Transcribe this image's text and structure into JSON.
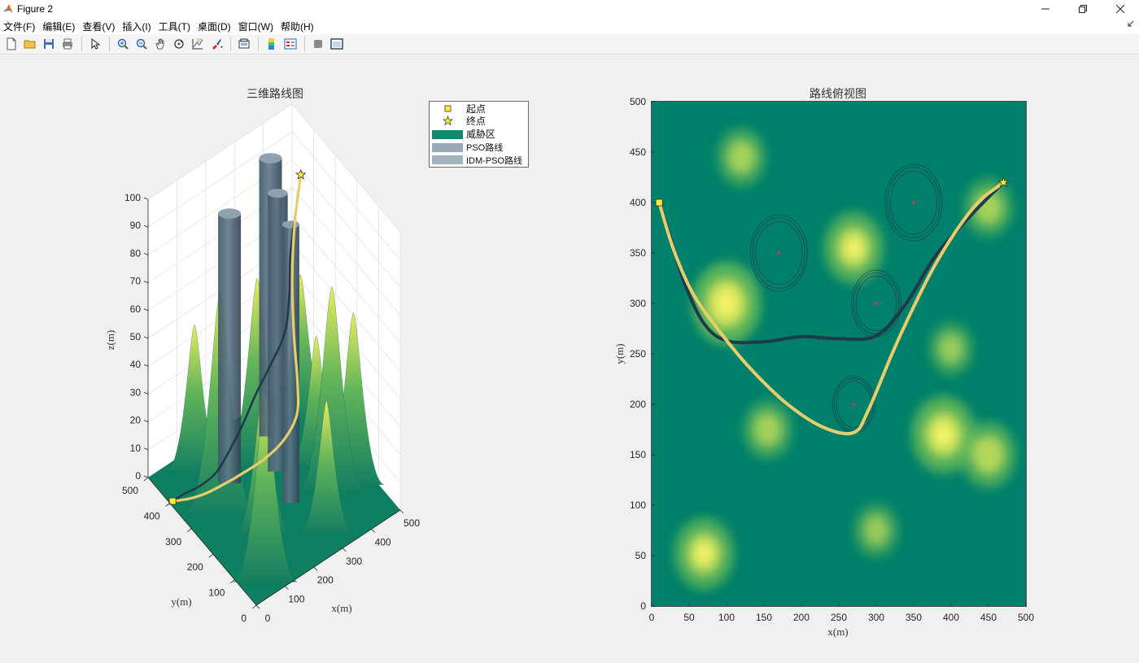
{
  "window": {
    "title": "Figure 2"
  },
  "menu": [
    "文件(F)",
    "编辑(E)",
    "查看(V)",
    "插入(I)",
    "工具(T)",
    "桌面(D)",
    "窗口(W)",
    "帮助(H)"
  ],
  "toolbar": [
    "new-file-icon",
    "open-folder-icon",
    "save-icon",
    "print-icon",
    "|",
    "select-arrow-icon",
    "|",
    "zoom-in-icon",
    "zoom-out-icon",
    "pan-hand-icon",
    "rotate-3d-icon",
    "data-cursor-icon",
    "brush-icon",
    "|",
    "link-plot-icon",
    "|",
    "colorbar-icon",
    "legend-icon",
    "|",
    "hide-tools-icon",
    "dock-icon"
  ],
  "colors": {
    "terrain_low": "#00806a",
    "terrain_high": "#fde74c",
    "pso": "#e9cd6c",
    "idm_pso": "#1f3a4d",
    "threat": "#0e8a6d",
    "legend_pso": "#9aabb7",
    "legend_idm": "#a3b3be",
    "start": "#ffee33",
    "end": "#ffee33"
  },
  "chart_data": [
    {
      "type": "surface3d",
      "title": "三维路线图",
      "xlabel": "x(m)",
      "ylabel": "y(m)",
      "zlabel": "z(m)",
      "xlim": [
        0,
        500
      ],
      "ylim": [
        0,
        500
      ],
      "zlim": [
        0,
        100
      ],
      "xticks": [
        "0",
        "100",
        "200",
        "300",
        "400",
        "500"
      ],
      "yticks": [
        "0",
        "100",
        "200",
        "300",
        "400",
        "500"
      ],
      "zticks": [
        "0",
        "10",
        "20",
        "30",
        "40",
        "50",
        "60",
        "70",
        "80",
        "90",
        "100"
      ],
      "legend": {
        "position": "top-right",
        "entries": [
          "起点",
          "终点",
          "威胁区",
          "PSO路线",
          "IDM-PSO路线"
        ]
      },
      "start": {
        "x": 10,
        "y": 400,
        "z": 0
      },
      "end": {
        "x": 470,
        "y": 420,
        "z": 84
      },
      "threat_cylinders": [
        {
          "x": 170,
          "y": 350,
          "r": 40,
          "h": 97
        },
        {
          "x": 300,
          "y": 300,
          "r": 35,
          "h": 100
        },
        {
          "x": 350,
          "y": 400,
          "r": 40,
          "h": 100
        },
        {
          "x": 270,
          "y": 200,
          "r": 30,
          "h": 100
        }
      ]
    },
    {
      "type": "heatmap",
      "title": "路线俯视图",
      "xlabel": "x(m)",
      "ylabel": "y(m)",
      "xlim": [
        0,
        500
      ],
      "ylim": [
        0,
        500
      ],
      "xticks": [
        "0",
        "50",
        "100",
        "150",
        "200",
        "250",
        "300",
        "350",
        "400",
        "450",
        "500"
      ],
      "yticks": [
        "0",
        "50",
        "100",
        "150",
        "200",
        "250",
        "300",
        "350",
        "400",
        "450",
        "500"
      ],
      "peaks": [
        {
          "x": 120,
          "y": 445,
          "h": 0.55
        },
        {
          "x": 100,
          "y": 300,
          "h": 1.0
        },
        {
          "x": 270,
          "y": 355,
          "h": 0.8
        },
        {
          "x": 155,
          "y": 175,
          "h": 0.55
        },
        {
          "x": 450,
          "y": 395,
          "h": 0.55
        },
        {
          "x": 400,
          "y": 255,
          "h": 0.45
        },
        {
          "x": 390,
          "y": 170,
          "h": 0.9
        },
        {
          "x": 450,
          "y": 150,
          "h": 0.7
        },
        {
          "x": 300,
          "y": 75,
          "h": 0.45
        },
        {
          "x": 70,
          "y": 52,
          "h": 0.8
        }
      ],
      "threats": [
        {
          "x": 170,
          "y": 350,
          "r": 38
        },
        {
          "x": 300,
          "y": 300,
          "r": 33
        },
        {
          "x": 350,
          "y": 400,
          "r": 38
        },
        {
          "x": 270,
          "y": 200,
          "r": 28
        }
      ],
      "pso_path": {
        "name": "PSO路线",
        "x": [
          10,
          30,
          55,
          90,
          130,
          180,
          230,
          270,
          290,
          330,
          380,
          430,
          470
        ],
        "y": [
          400,
          352,
          310,
          273,
          237,
          201,
          177,
          172,
          195,
          265,
          340,
          395,
          420
        ]
      },
      "idm_pso_path": {
        "name": "IDM-PSO路线",
        "x": [
          10,
          25,
          45,
          70,
          100,
          150,
          200,
          250,
          300,
          340,
          380,
          430,
          470
        ],
        "y": [
          400,
          365,
          318,
          280,
          263,
          262,
          267,
          265,
          268,
          300,
          348,
          390,
          420
        ]
      },
      "start": {
        "x": 10,
        "y": 400
      },
      "end": {
        "x": 470,
        "y": 420
      }
    }
  ]
}
